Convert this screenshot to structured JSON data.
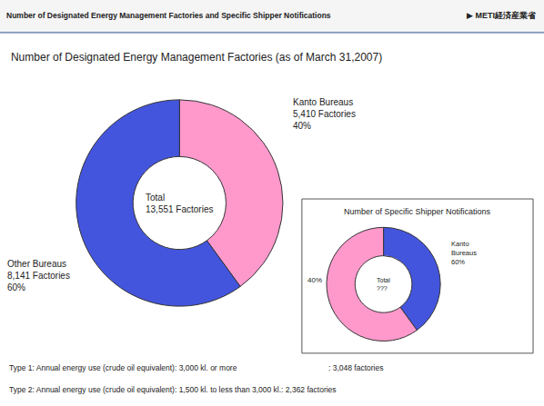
{
  "chart_data": [
    {
      "type": "pie",
      "title": "Number of Designated Energy Management Factories (as of March 31,2007)",
      "values": [
        40,
        60
      ],
      "colors": [
        "#FF99CC",
        "#4455DD"
      ],
      "annotations": [
        "Total\n13,551 Factories",
        "Kanto Bureaus\n5,410 Factories\n40%",
        "Other Bureaus\n8,141 Factories\n60%",
        "Number of Designated Energy Management Factories and Specific Shipper Notifications",
        "▶ METI経済産業省",
        "Type 1: Annual energy use (crude oil equivalent): 3,000 kl. or more",
        ": 3,048 factories",
        "Type 2: Annual energy use (crude oil equivalent): 1,500 kl. to less than 3,000 kl.: 2,362 factories"
      ]
    },
    {
      "type": "pie",
      "title": "Number of Specific Shipper Notifications",
      "values": [
        40,
        60
      ],
      "colors": [
        "#4455DD",
        "#FF99CC"
      ],
      "annotations": [
        "Total\n???",
        "40%",
        "Kanto\nBureaus\n60%"
      ]
    }
  ]
}
